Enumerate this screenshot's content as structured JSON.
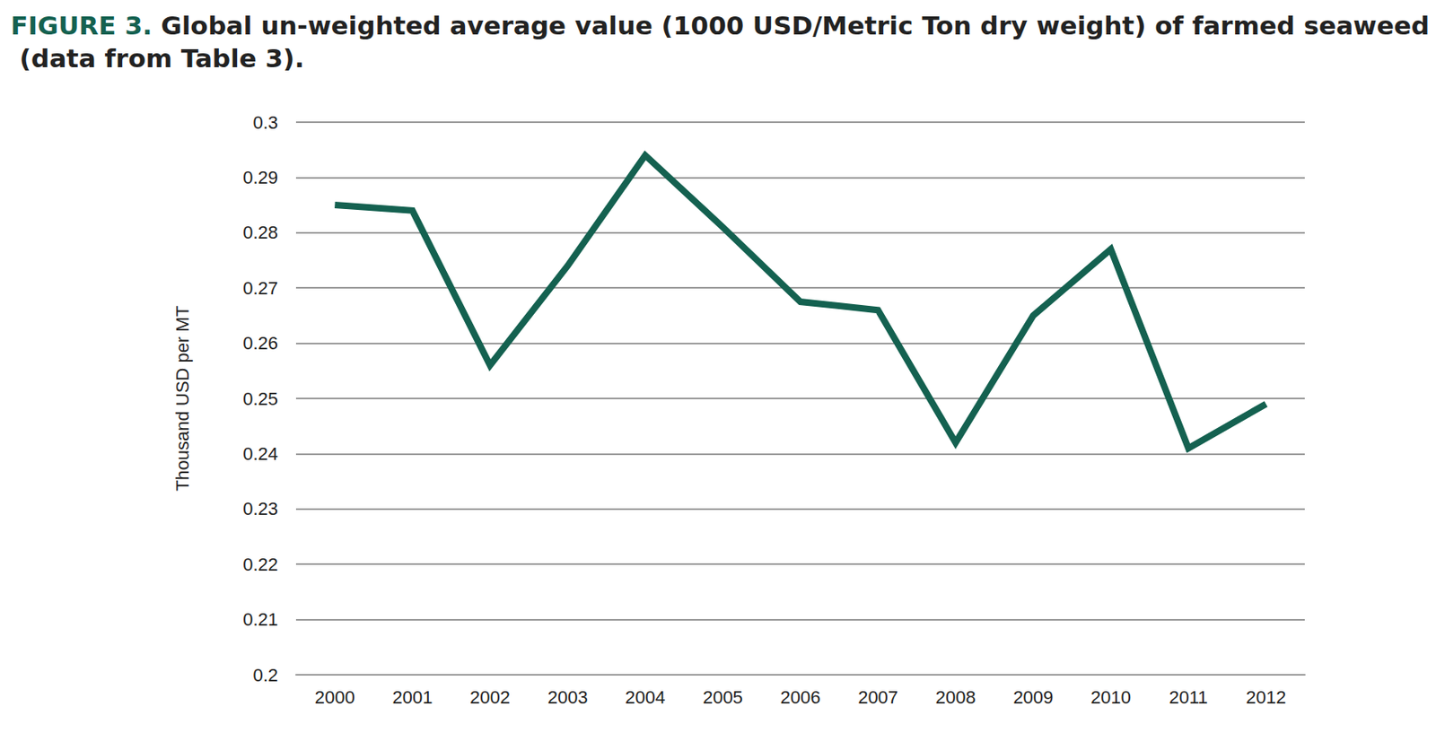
{
  "chart_data": {
    "type": "line",
    "title": "FIGURE 3. Global un-weighted average value (1000 USD/Metric Ton dry weight) of farmed seaweed (data from Table 3).",
    "y_label": "Thousand USD per MT",
    "categories": [
      "2000",
      "2001",
      "2002",
      "2003",
      "2004",
      "2005",
      "2006",
      "2007",
      "2008",
      "2009",
      "2010",
      "2011",
      "2012"
    ],
    "values": [
      0.285,
      0.284,
      0.256,
      0.274,
      0.294,
      0.281,
      0.2675,
      0.266,
      0.242,
      0.265,
      0.277,
      0.241,
      0.249
    ],
    "color": "#146150",
    "ylim": [
      0.2,
      0.3
    ],
    "yticks": [
      0.2,
      0.21,
      0.22,
      0.23,
      0.24,
      0.25,
      0.26,
      0.27,
      0.28,
      0.29,
      0.3
    ],
    "grid": true
  }
}
